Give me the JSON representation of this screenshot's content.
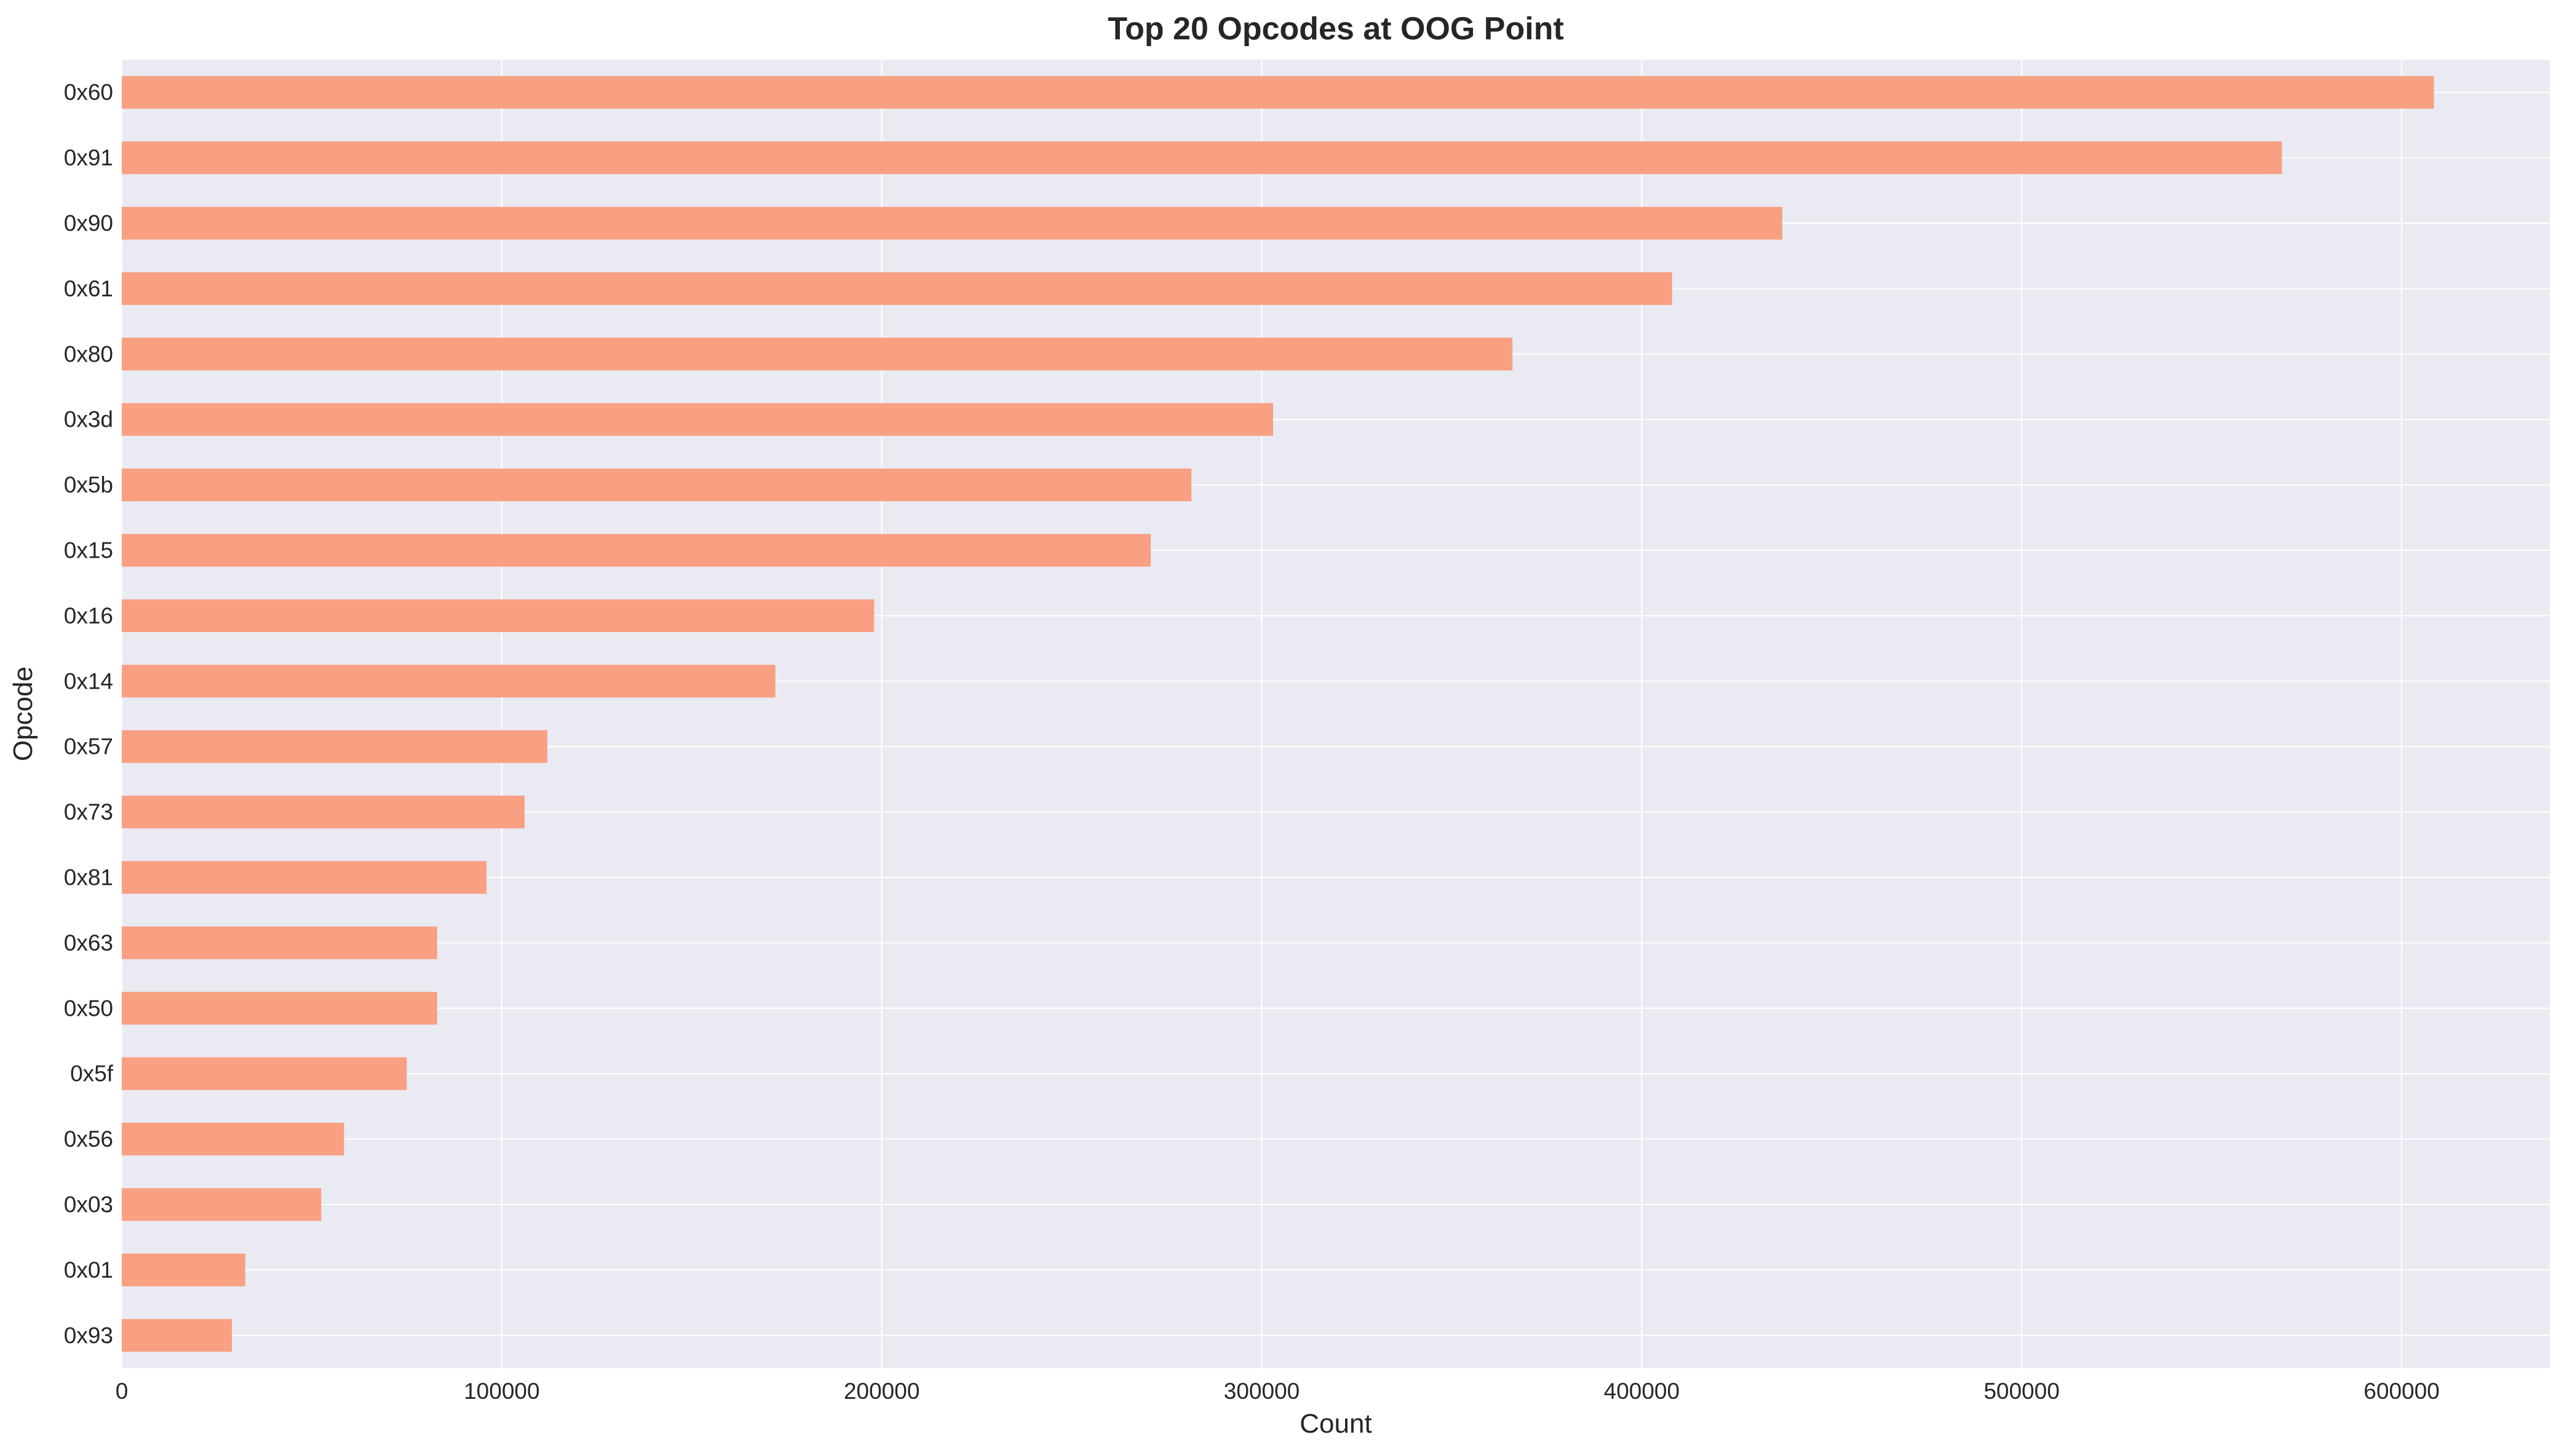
{
  "chart_data": {
    "type": "bar",
    "orientation": "horizontal",
    "title": "Top 20 Opcodes at OOG Point",
    "xlabel": "Count",
    "ylabel": "Opcode",
    "categories": [
      "0x60",
      "0x91",
      "0x90",
      "0x61",
      "0x80",
      "0x3d",
      "0x5b",
      "0x15",
      "0x16",
      "0x14",
      "0x57",
      "0x73",
      "0x81",
      "0x63",
      "0x50",
      "0x5f",
      "0x56",
      "0x03",
      "0x01",
      "0x93"
    ],
    "values": [
      608500,
      568500,
      437000,
      408000,
      366000,
      303000,
      281500,
      270800,
      198000,
      172000,
      112000,
      106000,
      96000,
      83000,
      83000,
      75000,
      58500,
      52500,
      32500,
      29000
    ],
    "xlim": [
      0,
      639000
    ],
    "xticks": [
      0,
      100000,
      200000,
      300000,
      400000,
      500000,
      600000
    ],
    "xtick_labels": [
      "0",
      "100000",
      "200000",
      "300000",
      "400000",
      "500000",
      "600000"
    ],
    "grid": true,
    "colors": {
      "bar": "#f9a083",
      "plot_background": "#eaeaf2",
      "grid": "#ffffff",
      "text": "#262626"
    }
  }
}
